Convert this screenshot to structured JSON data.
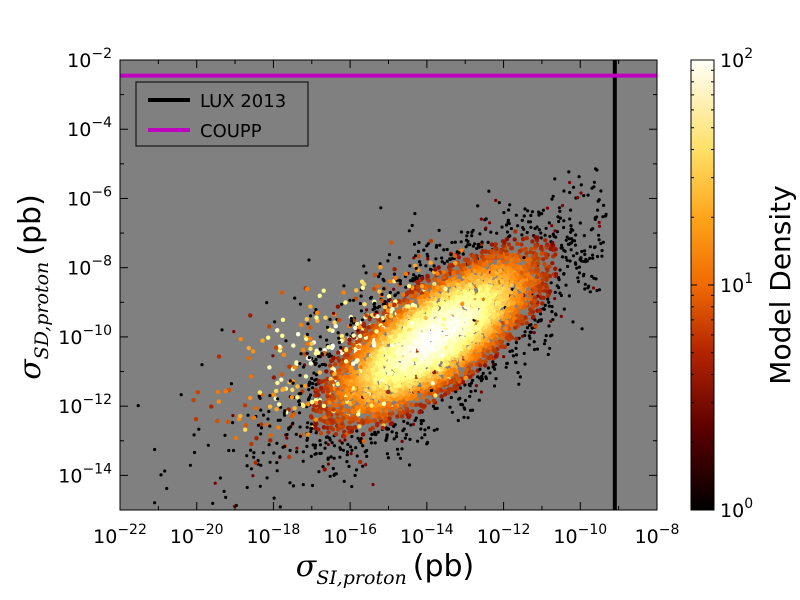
{
  "chart_data": {
    "type": "scatter",
    "subtype": "log-log density scatter with colorbar",
    "x_axis": {
      "label_main": "σ",
      "label_sub": "SI,proton",
      "label_unit": "(pb)",
      "scale": "log10",
      "lim_exp": [
        -22,
        -8
      ],
      "ticks": [
        {
          "base": "10",
          "exp": "−22",
          "e": -22
        },
        {
          "base": "10",
          "exp": "−20",
          "e": -20
        },
        {
          "base": "10",
          "exp": "−18",
          "e": -18
        },
        {
          "base": "10",
          "exp": "−16",
          "e": -16
        },
        {
          "base": "10",
          "exp": "−14",
          "e": -14
        },
        {
          "base": "10",
          "exp": "−12",
          "e": -12
        },
        {
          "base": "10",
          "exp": "−10",
          "e": -10
        },
        {
          "base": "10",
          "exp": "−8",
          "e": -8
        }
      ]
    },
    "y_axis": {
      "label_main": "σ",
      "label_sub": "SD,proton",
      "label_unit": "(pb)",
      "scale": "log10",
      "lim_exp": [
        -15,
        -2
      ],
      "ticks": [
        {
          "base": "10",
          "exp": "−2",
          "e": -2
        },
        {
          "base": "10",
          "exp": "−4",
          "e": -4
        },
        {
          "base": "10",
          "exp": "−6",
          "e": -6
        },
        {
          "base": "10",
          "exp": "−8",
          "e": -8
        },
        {
          "base": "10",
          "exp": "−10",
          "e": -10
        },
        {
          "base": "10",
          "exp": "−12",
          "e": -12
        },
        {
          "base": "10",
          "exp": "−14",
          "e": -14
        }
      ]
    },
    "limits": [
      {
        "name": "LUX 2013",
        "orientation": "vertical",
        "log10_value": -9.1,
        "color": "#000000"
      },
      {
        "name": "COUPP",
        "orientation": "horizontal",
        "log10_value": -2.45,
        "color": "#bf00bf"
      }
    ],
    "legend": {
      "position": "upper-left",
      "entries": [
        {
          "label": "LUX 2013",
          "color": "#000000"
        },
        {
          "label": "COUPP",
          "color": "#bf00bf"
        }
      ]
    },
    "density_model": {
      "description": "elongated point cloud of models",
      "center_log10": [
        -13.8,
        -10.0
      ],
      "axis_slope": 0.85,
      "density_peak": 100,
      "density_min": 1
    },
    "colorbar": {
      "label": "Model Density",
      "scale": "log10",
      "range": [
        1,
        100
      ],
      "ticks": [
        {
          "base": "10",
          "exp": "2",
          "value": 100
        },
        {
          "base": "10",
          "exp": "1",
          "value": 10
        },
        {
          "base": "10",
          "exp": "0",
          "value": 1
        }
      ],
      "colormap": "afmhot"
    },
    "colors": {
      "plot_background": "#808080",
      "scatter_points": "#000000",
      "lux_line": "#000000",
      "coupp_line": "#bf00bf"
    }
  }
}
